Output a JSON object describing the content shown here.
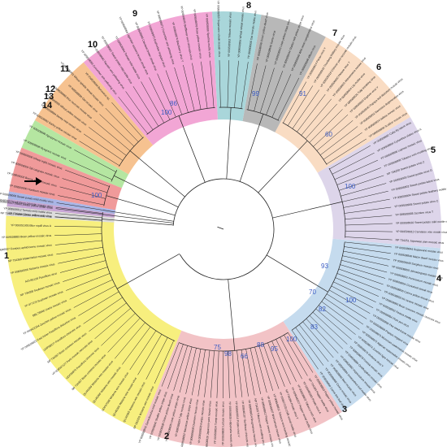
{
  "figure": {
    "clades": [
      {
        "label": "1",
        "color": "#f7ef7e"
      },
      {
        "label": "2",
        "color": "#f2c3c6"
      },
      {
        "label": "3",
        "color": "#c5dbee"
      },
      {
        "label": "4",
        "color": "#ddd5ea"
      },
      {
        "label": "5",
        "color": "#f9dcc3"
      },
      {
        "label": "6",
        "color": "#b8b8b8"
      },
      {
        "label": "7",
        "color": "#a9d6da"
      },
      {
        "label": "8",
        "color": "#f2a6d5"
      },
      {
        "label": "9",
        "color": "#f6c290"
      },
      {
        "label": "10",
        "color": "#b5e6a1"
      },
      {
        "label": "11",
        "color": "#f09a9a"
      },
      {
        "label": "12",
        "color": "#a9b5e6"
      },
      {
        "label": "13",
        "color": "#c8a6d6"
      },
      {
        "label": "14",
        "color": "#dcdcdc"
      }
    ],
    "bootstrap_values": [
      "100",
      "100",
      "99",
      "91",
      "60",
      "100",
      "93",
      "70",
      "82",
      "83",
      "100",
      "95",
      "88",
      "66",
      "98",
      "75",
      "86",
      "100"
    ],
    "tips": {
      "clade1": [
        "NP 062320 Wisteria vein mosaic virus",
        "QLI40365 Wisteria vein mosaic virus",
        "QLI40366 Wisteria vein mosaic virus",
        "UOF97588 Wisteria vein mosaic virus",
        "QLI40368 Wisteria vein mosaic virus",
        "QLI40369 Wisteria vein mosaic virus",
        "NP 734367 Bean common mosaic virus",
        "UOF95975 Passiflora chlorosis virus",
        "YP 009507127 Paris mosaic necrosis virus",
        "NP 734357 Bean common mosaic virus",
        "UOF95977 Passiflora chlorosis virus",
        "YP 009508822 East Asian Passiflora distortion virus",
        "YP 009422294 Zucchini yellow mosaic virus",
        "BBL78948 Uraria mosaic virus",
        "YP 077270 Soybean mosaic virus",
        "NP 734358 Soybean mosaic virus",
        "AGV56128 Passiflora virus",
        "YP 008060006 Telosma mosaic virus",
        "NP 734369 Watermelon mosaic virus",
        "YP 009046507 Cowpea aphid-borne mosaic virus",
        "YP 009508883 Bean yellow mosaic virus",
        "YP 009351905 Blue squill virus A",
        "NP 734358 Clover yellow vein virus",
        "YP 009046307 Dendrobium chlorotic mosaic virus"
      ],
      "clade2": [
        "YP 009508853 Pepper yellow mosaic virus",
        "NP 734399 Pepper mottle virus",
        "YP 006485393 Potato virus A",
        "YP 009508822 Tobacco etch virus",
        "YP 009046207 Pepper veinal mottle virus",
        "NP 734384 Potato virus Y",
        "YP 009507135 Chilli veinal mottle virus",
        "YP 009508811 Tobacco vein banding mosaic virus",
        "YP 009046607 Wild tomato mosaic virus",
        "YP 009508812 Pepper severe mosaic virus",
        "NP 734205 Tobacco vein mottling virus",
        "YP 009508814 Brugmansia mosaic virus",
        "YP 009046107 Sunflower chlorotic mottle virus",
        "YP 009508816 Potato virus V",
        "YP 009508818 Habenaria mosaic virus",
        "YP 009508820 Lettuce mosaic virus",
        "YP 009508824 Turnip mosaic virus",
        "YP 009508826 Japanese yam mosaic virus",
        "YP 009508828 Konjac mosaic virus",
        "YP 009508830 Dasheen mosaic virus",
        "YP 009508832 Narcissus yellow stripe virus",
        "YP 009508834 Tulip mosaic virus",
        "YP 009508836 Leek yellow stripe virus",
        "YP 009508838 Onion yellow dwarf virus",
        "YP 009508840 Shallot yellow stripe virus",
        "YP 009508842 Zantedeschia mild mosaic virus"
      ],
      "clade3": [
        "YP 009508844 Sugarcane mosaic virus",
        "YP 009508846 Maize dwarf mosaic virus",
        "YP 009508848 Sorghum mosaic virus",
        "YP 009508850 Johnsongrass mosaic virus",
        "YP 009508852 Pennisetum mosaic virus",
        "YP 009508854 Cocksfoot streak virus",
        "YP 009508856 Canna yellow streak virus",
        "YP 009508858 Iris severe mosaic virus",
        "YP 009508860 Bean common mosaic necrosis virus",
        "YP 009508862 Peanut mottle virus",
        "YP 009508864 Plum pox virus",
        "YP 009508866 Pea seed-borne mosaic virus",
        "YP 009508868 Papaya ringspot virus",
        "YP 009508870 Moroccan watermelon mosaic virus",
        "YP 009508872 Algerian watermelon mosaic virus",
        "YP 009508874 Zucchini tigre mosaic virus",
        "YP 009508876 Verbena virus Y",
        "YP 009508878 Freesia mosaic virus",
        "YP 009508880 Ornithogalum mosaic virus",
        "YP 009508882 Hippeastrum mosaic virus",
        "YP 009508884 Amaranthus leaf mottle virus",
        "YP 009508886 Beet mosaic virus",
        "YP 009508888 Celery mosaic virus",
        "YP 009508890 Carrot thin leaf virus"
      ],
      "clade4": [
        "YP 009508892 Calla lily latent virus",
        "YP 009508894 Cyrtanthus elatus virus A",
        "YP 009508896 Lupinus mosaic virus",
        "YP 009508898 Tobacco vein mottling virus",
        "NP 734250 Sweet potato virus 2",
        "YP 009508900 Sweet potato virus G",
        "YP 009508902 Sweet potato latent virus",
        "YP 009508904 Sweet potato feathery mottle virus",
        "YP 009508906 Sweet potato virus C",
        "YP 009508908 Jasmine virus T",
        "YP 009508910 Sweet potato mild mottle virus",
        "YP 009508912 Carnation vein mottle virus",
        "NP 734251 Japanese yam mosaic virus"
      ],
      "clade5": [
        "YP 009508914 Panax virus Y",
        "YP 009508916 Thunberg fritillary mosaic virus",
        "YP 009508918 Chinese yam necrotic mosaic virus",
        "YP 009508920 Pleione virus Y",
        "YP 009508922 Alstroemeria mosaic virus",
        "YP 009508924 Lily mottle virus",
        "YP 009508926 Tulip breaking virus",
        "YP 009508928 Daphne virus Y",
        "YP 009508930 Papaya leaf distortion mosaic virus",
        "YP 009508932 Narcissus degeneration virus",
        "YP 009508934 Vallota mosaic virus",
        "YP 009508936 Scallion mosaic virus"
      ],
      "clade6": [
        "YP 009508938 Onion yellow dwarf virus",
        "YP 009508940 Garlic virus",
        "YP 009508942 Leek yellow stripe virus",
        "YP 009508944 Shallot mild yellow stripe virus",
        "YP 009508946 Wild onion symptomless virus",
        "YP 009508948 Allium virus"
      ],
      "clade7": [
        "YP 009508950 Sugarcane streak mosaic virus",
        "YP 009508952 Triticum mosaic virus",
        "YP 009508954 Wheat streak mosaic virus",
        "YP 009508956 Oat necrotic mottle virus"
      ],
      "clade8": [
        "YP 009508958 Cucumber vein yellowing virus",
        "YP 009508960 Squash vein yellowing virus",
        "YP 009508962 Sweet potato mild mottle virus",
        "YP 009508964 Tomato mild mottle virus",
        "YP 009508966 Ugandan cassava brown streak virus",
        "YP 009508968 Cassava brown streak virus",
        "YP 009508970 Euphorbia ringspot virus",
        "YP 009508972 Cucumber vein yellowing virus",
        "YP 009508974 Blackberry virus Y",
        "YP 009508976 Bellflower vein chlorosis virus",
        "YP 009508978 Rose yellow mosaic virus",
        "YP 009508980 Spartina mottle virus"
      ],
      "clade9": [
        "YP 009508982 Barley yellow mosaic virus",
        "YP 009508984 Barley mild mosaic virus",
        "YP 009508986 Wheat yellow mosaic virus",
        "YP 009508988 Rice necrosis mosaic virus",
        "YP 009508990 Oat mosaic virus",
        "YP 009508992 Wheat spindle streak mosaic virus",
        "YP 009508994 Bymovirus sp."
      ],
      "clade10": [
        "YP 009508996 Ryegrass mosaic virus",
        "YP 009508998 Agropyron mosaic virus"
      ],
      "clade11": [
        "YP 009509000 Hordeum mosaic virus",
        "YP 009509002 Brome streak mosaic virus",
        "YP 009509004 Tall oatgrass mosaic virus",
        "YP 009509006 Wheat eqlid mosaic virus"
      ],
      "clade12": [
        "YP 009509008 Sweet potato mild mottle virus"
      ],
      "clade13": [
        "YP 009509010 Sweet potato yellow dwarf virus"
      ],
      "clade14": [
        "NP 734215 Sweet potato mild mottle virus",
        "YP 009509012 Tomato mild mottle virus"
      ]
    }
  }
}
